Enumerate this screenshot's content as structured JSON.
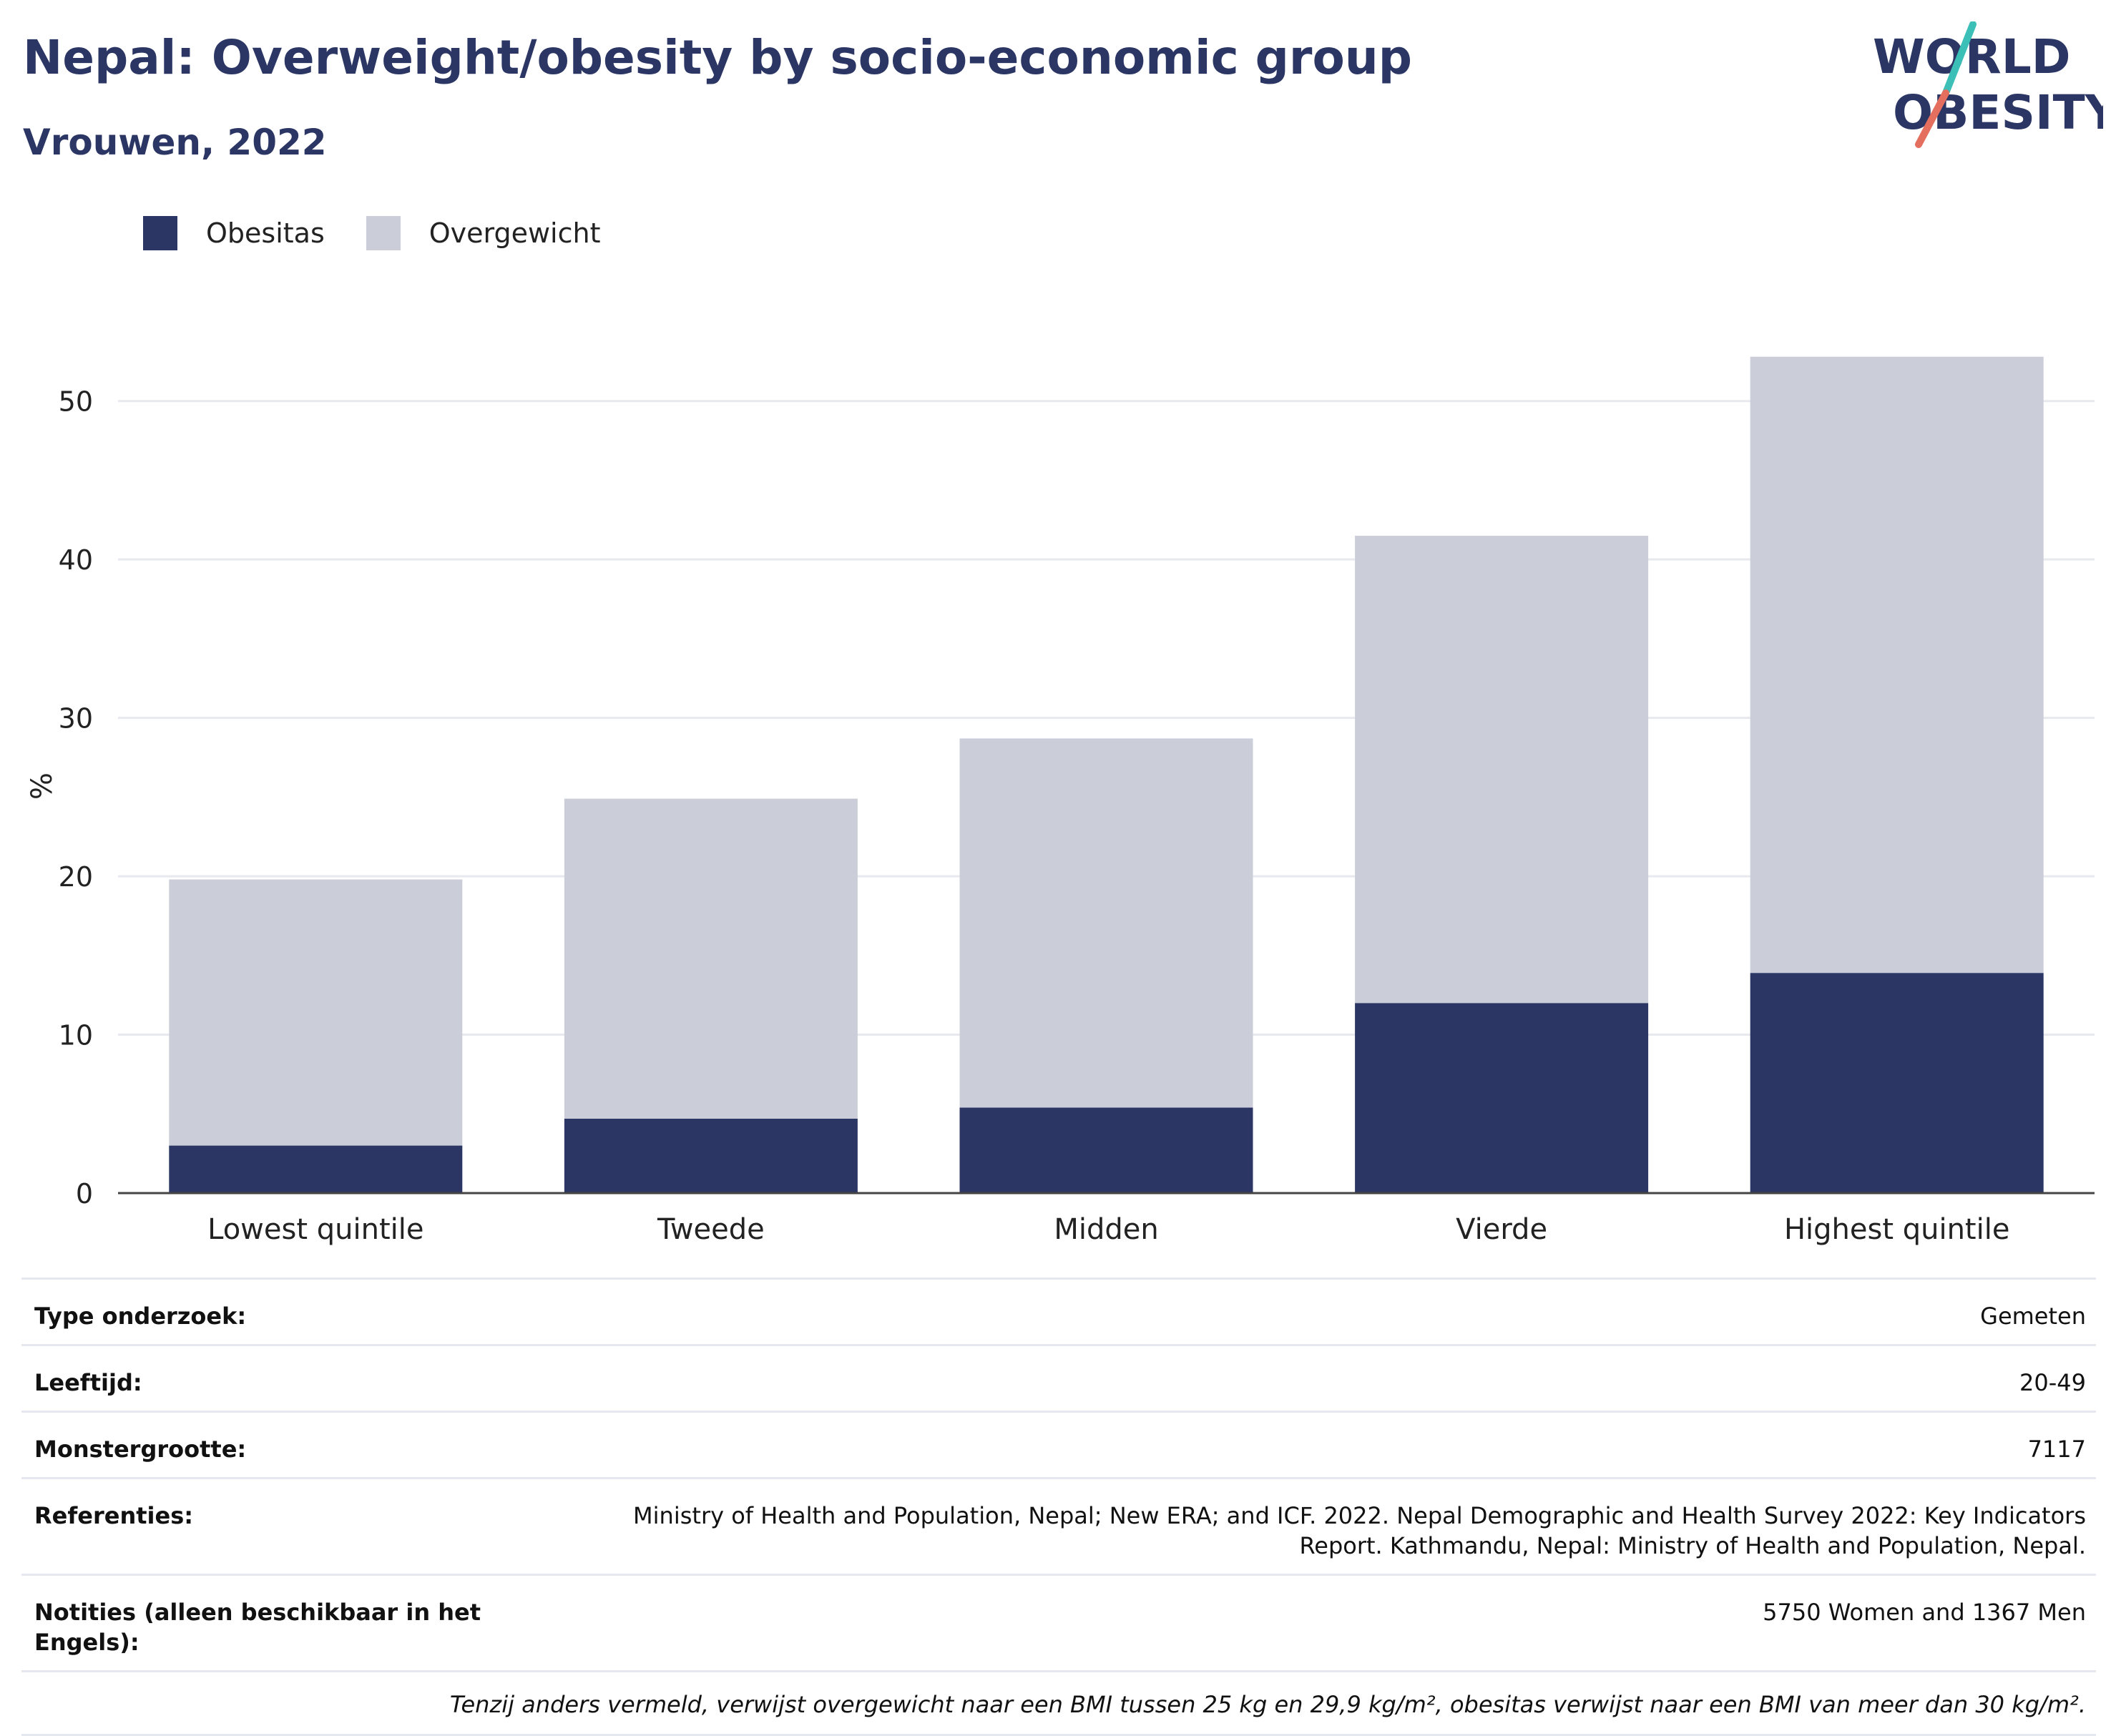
{
  "header": {
    "title": "Nepal: Overweight/obesity by socio-economic group",
    "subtitle": "Vrouwen, 2022",
    "logo_line1": "WORLD",
    "logo_line2": "OBESITY"
  },
  "colors": {
    "obesity": "#2b3664",
    "overweight": "#cbcdd9",
    "logo_teal": "#3bbfb7",
    "logo_coral": "#e56f5e"
  },
  "chart_data": {
    "type": "bar",
    "stacked": true,
    "categories": [
      "Lowest quintile",
      "Tweede",
      "Midden",
      "Vierde",
      "Highest quintile"
    ],
    "series": [
      {
        "name": "Obesitas",
        "values": [
          3.0,
          4.7,
          5.4,
          12.0,
          13.9
        ]
      },
      {
        "name": "Overgewicht",
        "values": [
          16.8,
          20.2,
          23.3,
          29.5,
          38.9
        ]
      }
    ],
    "ylabel": "%",
    "xlabel": "",
    "ylim": [
      0,
      55
    ],
    "yticks": [
      0,
      10,
      20,
      30,
      40,
      50
    ],
    "grid": true,
    "legend_position": "top-left"
  },
  "info": {
    "rows": [
      {
        "label": "Type onderzoek:",
        "value": "Gemeten"
      },
      {
        "label": "Leeftijd:",
        "value": "20-49"
      },
      {
        "label": "Monstergrootte:",
        "value": "7117"
      },
      {
        "label": "Referenties:",
        "value": "Ministry of Health and Population, Nepal; New ERA; and ICF. 2022. Nepal Demographic and Health Survey 2022: Key Indicators Report. Kathmandu, Nepal: Ministry of Health and Population, Nepal."
      },
      {
        "label": "Notities (alleen beschikbaar in het Engels):",
        "value": "5750 Women and 1367 Men"
      }
    ],
    "footnote": "Tenzij anders vermeld, verwijst overgewicht naar een BMI tussen 25 kg en 29,9 kg/m², obesitas verwijst naar een BMI van meer dan 30 kg/m²."
  }
}
